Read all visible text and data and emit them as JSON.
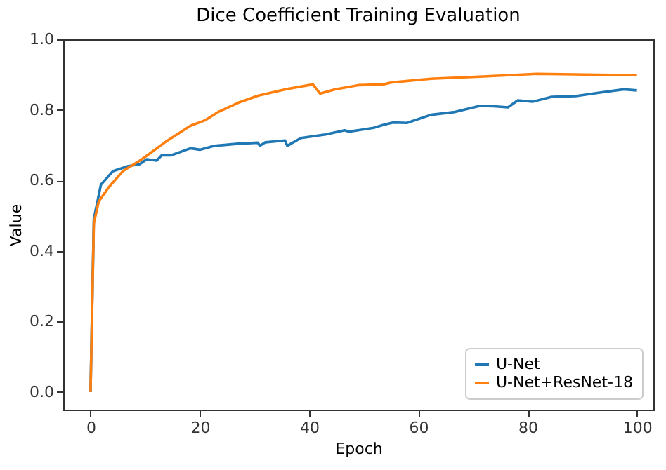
{
  "chart_data": {
    "type": "line",
    "title": "Dice Coefficient Training Evaluation",
    "xlabel": "Epoch",
    "ylabel": "Value",
    "xlim": [
      -5,
      103
    ],
    "xticks": [
      0,
      20,
      40,
      60,
      80,
      100
    ],
    "ylim": [
      -0.05,
      1.0
    ],
    "yticks": [
      {
        "value": 0,
        "label": "0.0"
      },
      {
        "value": 0.2,
        "label": "0.2"
      },
      {
        "value": 0.4,
        "label": "0.4"
      },
      {
        "value": 0.6,
        "label": "0.6"
      },
      {
        "value": 0.8,
        "label": "0.8"
      },
      {
        "value": 1,
        "label": "1.0"
      }
    ],
    "grid": false,
    "legend": "bottom right",
    "marker": "none",
    "line_style": "solid",
    "series": [
      {
        "name": "U-Net",
        "color": "#1f77b4",
        "x": [
          0,
          0.6,
          1.9,
          4.1,
          6.8,
          9,
          10.3,
          12.1,
          13,
          14.7,
          18.3,
          20,
          22.7,
          27,
          30.6,
          31,
          32,
          35.6,
          36,
          38.5,
          43,
          46.5,
          47.3,
          51.8,
          53.5,
          55.3,
          57.9,
          62.3,
          66.7,
          71.2,
          73.8,
          76.4,
          78.2,
          80.9,
          84.4,
          88.8,
          93.2,
          97.6,
          100
        ],
        "values": [
          0,
          0.49,
          0.588,
          0.626,
          0.64,
          0.646,
          0.66,
          0.656,
          0.671,
          0.671,
          0.691,
          0.687,
          0.698,
          0.704,
          0.707,
          0.698,
          0.708,
          0.713,
          0.698,
          0.72,
          0.73,
          0.742,
          0.738,
          0.749,
          0.757,
          0.764,
          0.763,
          0.786,
          0.794,
          0.811,
          0.81,
          0.807,
          0.827,
          0.823,
          0.837,
          0.839,
          0.849,
          0.858,
          0.855
        ]
      },
      {
        "name": "U-Net+ResNet-18",
        "color": "#ff7f0e",
        "x": [
          0,
          0.6,
          1.5,
          3.3,
          5.9,
          9.4,
          13.8,
          18.3,
          20.9,
          23.5,
          27,
          30.6,
          35.9,
          40.7,
          42,
          44.7,
          49.1,
          53.5,
          55.3,
          62.3,
          71.2,
          81.7,
          90.6,
          100
        ],
        "values": [
          0,
          0.478,
          0.54,
          0.58,
          0.626,
          0.66,
          0.71,
          0.755,
          0.77,
          0.795,
          0.82,
          0.84,
          0.859,
          0.872,
          0.846,
          0.858,
          0.87,
          0.872,
          0.878,
          0.888,
          0.894,
          0.902,
          0.9,
          0.898
        ]
      }
    ]
  }
}
